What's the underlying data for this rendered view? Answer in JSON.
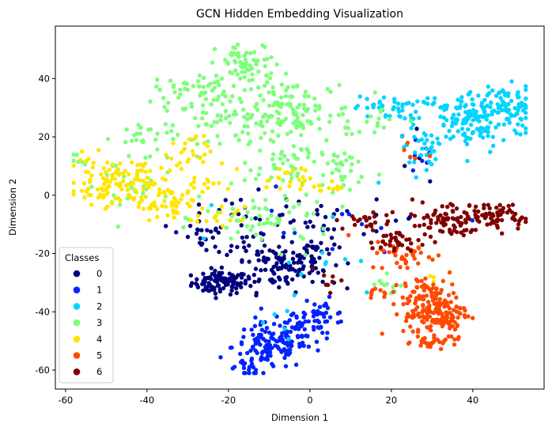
{
  "chart_data": {
    "type": "scatter",
    "title": "GCN Hidden Embedding Visualization",
    "xlabel": "Dimension 1",
    "ylabel": "Dimension 2",
    "xlim": [
      -62.5,
      57.5
    ],
    "ylim": [
      -66.5,
      58
    ],
    "xticks": [
      -60,
      -40,
      -20,
      0,
      20,
      40
    ],
    "yticks": [
      -60,
      -40,
      -20,
      0,
      20,
      40
    ],
    "grid": false,
    "legend": {
      "title": "Classes",
      "placement": "lower-left"
    },
    "series": [
      {
        "name": "0",
        "color": "#00007f",
        "clusters": [
          {
            "cx": -22,
            "cy": -30,
            "sx": 3.5,
            "sy": 2.0,
            "n": 90
          },
          {
            "cx": -8,
            "cy": -24,
            "sx": 5.0,
            "sy": 4.5,
            "n": 100
          },
          {
            "cx": 1,
            "cy": -22,
            "sx": 3.0,
            "sy": 5.0,
            "n": 40
          },
          {
            "cx": -18,
            "cy": -12,
            "sx": 6.0,
            "sy": 6.0,
            "n": 40
          },
          {
            "cx": 5,
            "cy": -8,
            "sx": 12.0,
            "sy": 3.0,
            "n": 30
          },
          {
            "cx": -28,
            "cy": -12,
            "sx": 3.0,
            "sy": 2.5,
            "n": 12
          },
          {
            "cx": 25,
            "cy": 15,
            "sx": 2.0,
            "sy": 4.0,
            "n": 6
          }
        ]
      },
      {
        "name": "1",
        "color": "#0023ff",
        "clusters": [
          {
            "cx": -10,
            "cy": -52,
            "sx": 4.5,
            "sy": 4.0,
            "n": 110
          },
          {
            "cx": -2,
            "cy": -46,
            "sx": 4.0,
            "sy": 4.0,
            "n": 60
          },
          {
            "cx": 3,
            "cy": -42,
            "sx": 3.0,
            "sy": 3.0,
            "n": 30
          },
          {
            "cx": -15,
            "cy": -59,
            "sx": 1.5,
            "sy": 1.5,
            "n": 15
          },
          {
            "cx": 2,
            "cy": -15,
            "sx": 12.0,
            "sy": 8.0,
            "n": 12
          },
          {
            "cx": 27,
            "cy": 13,
            "sx": 2.0,
            "sy": 4.0,
            "n": 6
          }
        ]
      },
      {
        "name": "2",
        "color": "#00d4ff",
        "clusters": [
          {
            "cx": 40,
            "cy": 26,
            "sx": 7.0,
            "sy": 5.0,
            "n": 170
          },
          {
            "cx": 47,
            "cy": 32,
            "sx": 4.0,
            "sy": 3.0,
            "n": 50
          },
          {
            "cx": 19,
            "cy": 30,
            "sx": 4.0,
            "sy": 2.0,
            "n": 40
          },
          {
            "cx": 27,
            "cy": 15,
            "sx": 2.0,
            "sy": 4.0,
            "n": 25
          },
          {
            "cx": 0,
            "cy": -20,
            "sx": 12.0,
            "sy": 12.0,
            "n": 12
          },
          {
            "cx": -8,
            "cy": -45,
            "sx": 5.0,
            "sy": 5.0,
            "n": 6
          }
        ]
      },
      {
        "name": "3",
        "color": "#7dff7a",
        "clusters": [
          {
            "cx": -15,
            "cy": 45,
            "sx": 4.0,
            "sy": 3.5,
            "n": 60
          },
          {
            "cx": -28,
            "cy": 36,
            "sx": 5.0,
            "sy": 3.0,
            "n": 50
          },
          {
            "cx": -5,
            "cy": 28,
            "sx": 8.0,
            "sy": 6.0,
            "n": 140
          },
          {
            "cx": -20,
            "cy": 25,
            "sx": 6.0,
            "sy": 4.0,
            "n": 40
          },
          {
            "cx": -40,
            "cy": 20,
            "sx": 4.0,
            "sy": 3.0,
            "n": 30
          },
          {
            "cx": -2,
            "cy": 10,
            "sx": 7.0,
            "sy": 4.0,
            "n": 45
          },
          {
            "cx": 8,
            "cy": 8,
            "sx": 2.0,
            "sy": 5.0,
            "n": 20
          },
          {
            "cx": -10,
            "cy": -8,
            "sx": 8.0,
            "sy": 5.0,
            "n": 60
          },
          {
            "cx": -45,
            "cy": 2,
            "sx": 6.0,
            "sy": 6.0,
            "n": 25
          },
          {
            "cx": -57,
            "cy": 12,
            "sx": 1.0,
            "sy": 2.0,
            "n": 6
          },
          {
            "cx": 18,
            "cy": -32,
            "sx": 3.0,
            "sy": 2.0,
            "n": 10
          },
          {
            "cx": 18,
            "cy": 26,
            "sx": 3.0,
            "sy": 3.0,
            "n": 10
          }
        ]
      },
      {
        "name": "4",
        "color": "#ffe500",
        "clusters": [
          {
            "cx": -50,
            "cy": 5,
            "sx": 4.0,
            "sy": 4.0,
            "n": 80
          },
          {
            "cx": -40,
            "cy": 3,
            "sx": 4.0,
            "sy": 5.0,
            "n": 60
          },
          {
            "cx": -35,
            "cy": -4,
            "sx": 3.0,
            "sy": 2.0,
            "n": 25
          },
          {
            "cx": -30,
            "cy": 14,
            "sx": 3.0,
            "sy": 3.0,
            "n": 25
          },
          {
            "cx": -28,
            "cy": 3,
            "sx": 3.0,
            "sy": 2.0,
            "n": 15
          },
          {
            "cx": -22,
            "cy": -8,
            "sx": 3.0,
            "sy": 2.0,
            "n": 15
          },
          {
            "cx": -5,
            "cy": 5,
            "sx": 5.0,
            "sy": 2.5,
            "n": 25
          },
          {
            "cx": 6,
            "cy": 3,
            "sx": 2.0,
            "sy": 1.0,
            "n": 8
          },
          {
            "cx": 29,
            "cy": -30,
            "sx": 2.0,
            "sy": 3.0,
            "n": 5
          }
        ]
      },
      {
        "name": "5",
        "color": "#ff4a00",
        "clusters": [
          {
            "cx": 31,
            "cy": -40,
            "sx": 4.0,
            "sy": 5.0,
            "n": 170
          },
          {
            "cx": 23,
            "cy": -20,
            "sx": 4.0,
            "sy": 3.0,
            "n": 40
          },
          {
            "cx": 28,
            "cy": -32,
            "sx": 3.0,
            "sy": 2.0,
            "n": 20
          },
          {
            "cx": 17,
            "cy": -33,
            "sx": 2.0,
            "sy": 1.0,
            "n": 10
          },
          {
            "cx": 30,
            "cy": -50,
            "sx": 2.0,
            "sy": 1.5,
            "n": 20
          },
          {
            "cx": 25,
            "cy": 13,
            "sx": 2.0,
            "sy": 2.0,
            "n": 5
          }
        ]
      },
      {
        "name": "6",
        "color": "#7f0000",
        "clusters": [
          {
            "cx": 35,
            "cy": -8,
            "sx": 7.0,
            "sy": 3.0,
            "n": 110
          },
          {
            "cx": 48,
            "cy": -7,
            "sx": 3.0,
            "sy": 2.0,
            "n": 30
          },
          {
            "cx": 21,
            "cy": -16,
            "sx": 3.0,
            "sy": 2.0,
            "n": 30
          },
          {
            "cx": 14,
            "cy": -9,
            "sx": 3.0,
            "sy": 1.5,
            "n": 20
          },
          {
            "cx": 4,
            "cy": -28,
            "sx": 2.0,
            "sy": 3.0,
            "n": 8
          }
        ]
      }
    ]
  }
}
